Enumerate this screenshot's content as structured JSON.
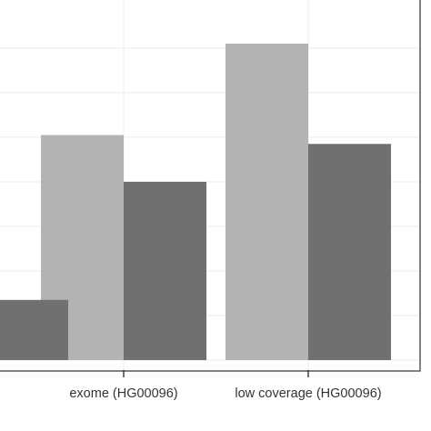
{
  "chart_data": {
    "type": "bar",
    "title": "",
    "xlabel": "",
    "ylabel": "",
    "categories": [
      "",
      "exome (HG00096)",
      "low coverage (HG00096)"
    ],
    "series": [
      {
        "values": [
          null,
          5.05,
          7.1
        ],
        "color": "#b3b3b3"
      },
      {
        "values": [
          1.35,
          4.0,
          4.85
        ],
        "color": "#707070"
      }
    ],
    "ylim": [
      0,
      7.9
    ],
    "y_gridlines": [
      0,
      1,
      2,
      3,
      4,
      5,
      6,
      7
    ],
    "grid": true,
    "legend": "none"
  }
}
